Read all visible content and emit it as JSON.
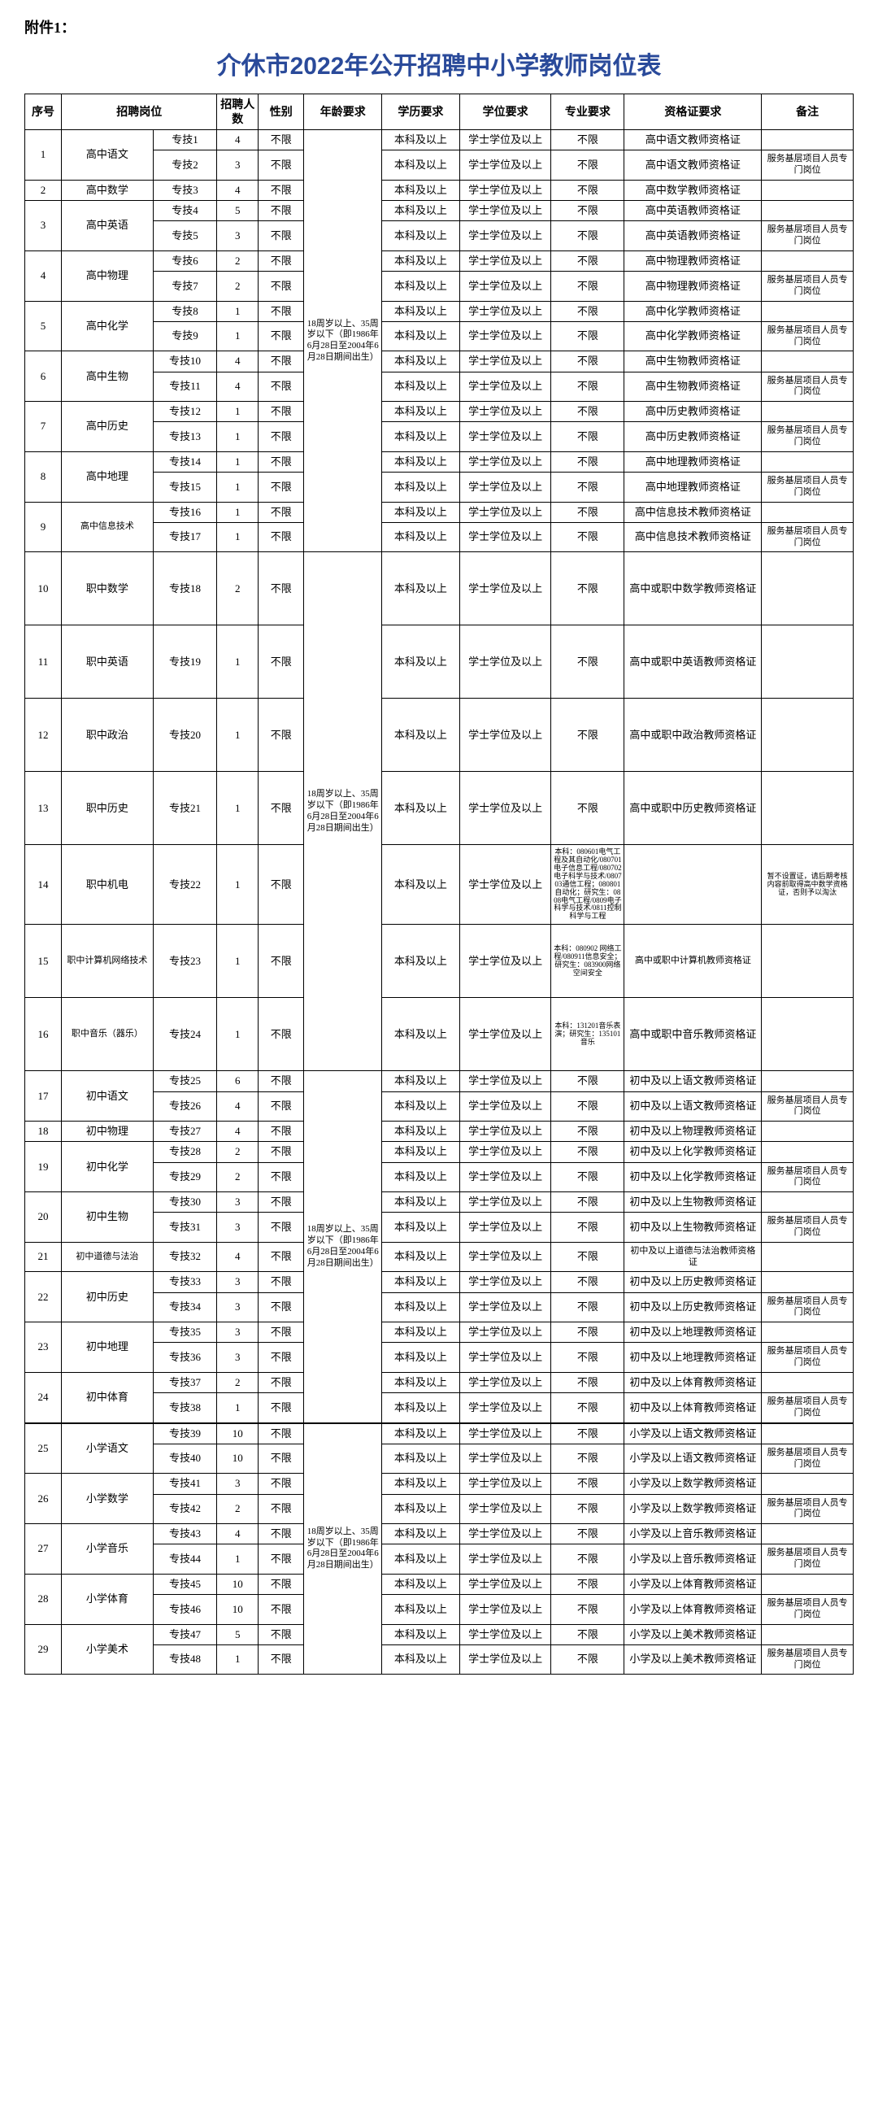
{
  "attachment": "附件1：",
  "title": "介休市2022年公开招聘中小学教师岗位表",
  "headers": {
    "seq": "序号",
    "position": "招聘岗位",
    "num": "招聘人数",
    "sex": "性别",
    "age": "年龄要求",
    "edu": "学历要求",
    "degree": "学位要求",
    "major": "专业要求",
    "cert": "资格证要求",
    "note": "备注"
  },
  "age_text_1": "18周岁以上、35周岁以下（即1986年6月28日至2004年6月28日期间出生）",
  "age_text_2": "18周岁以上、35周岁以下（即1986年6月28日至2004年6月28日期间出生）",
  "age_text_3": "18周岁以上、35周岁以下（即1986年6月28日至2004年6月28日期间出生）",
  "age_text_4": "18周岁以上、35周岁以下（即1986年6月28日至2004年6月28日期间出生）",
  "edu_std": "本科及以上",
  "deg_std": "学士学位及以上",
  "maj_none": "不限",
  "sex_none": "不限",
  "note_service": "服务基层项目人员专门岗位",
  "note_zj14": "暂不设置证，请后期考核内容前取得高中数学资格证，否则予以淘汰",
  "major_14": "本科：080601电气工程及其自动化/080701电子信息工程/080702电子科学与技术/080703通信工程；080801自动化；研究生：0808电气工程/0809电子科学与技术/0811控制科学与工程",
  "major_15": "本科：080902 网络工程/080911信息安全；研究生：083900网络空间安全",
  "major_16": "本科：131201音乐表演；研究生：135101音乐",
  "rows": [
    {
      "seq": "1",
      "pos": "高中语文",
      "span": 2,
      "code": "专技1",
      "num": "4",
      "cert": "高中语文教师资格证",
      "note": ""
    },
    {
      "code": "专技2",
      "num": "3",
      "cert": "高中语文教师资格证",
      "note": "svc"
    },
    {
      "seq": "2",
      "pos": "高中数学",
      "span": 1,
      "code": "专技3",
      "num": "4",
      "cert": "高中数学教师资格证",
      "note": ""
    },
    {
      "seq": "3",
      "pos": "高中英语",
      "span": 2,
      "code": "专技4",
      "num": "5",
      "cert": "高中英语教师资格证",
      "note": ""
    },
    {
      "code": "专技5",
      "num": "3",
      "cert": "高中英语教师资格证",
      "note": "svc"
    },
    {
      "seq": "4",
      "pos": "高中物理",
      "span": 2,
      "code": "专技6",
      "num": "2",
      "cert": "高中物理教师资格证",
      "note": ""
    },
    {
      "code": "专技7",
      "num": "2",
      "cert": "高中物理教师资格证",
      "note": "svc"
    },
    {
      "seq": "5",
      "pos": "高中化学",
      "span": 2,
      "code": "专技8",
      "num": "1",
      "cert": "高中化学教师资格证",
      "note": ""
    },
    {
      "code": "专技9",
      "num": "1",
      "cert": "高中化学教师资格证",
      "note": "svc"
    },
    {
      "seq": "6",
      "pos": "高中生物",
      "span": 2,
      "code": "专技10",
      "num": "4",
      "cert": "高中生物教师资格证",
      "note": ""
    },
    {
      "code": "专技11",
      "num": "4",
      "cert": "高中生物教师资格证",
      "note": "svc"
    },
    {
      "seq": "7",
      "pos": "高中历史",
      "span": 2,
      "code": "专技12",
      "num": "1",
      "cert": "高中历史教师资格证",
      "note": ""
    },
    {
      "code": "专技13",
      "num": "1",
      "cert": "高中历史教师资格证",
      "note": "svc"
    },
    {
      "seq": "8",
      "pos": "高中地理",
      "span": 2,
      "code": "专技14",
      "num": "1",
      "cert": "高中地理教师资格证",
      "note": ""
    },
    {
      "code": "专技15",
      "num": "1",
      "cert": "高中地理教师资格证",
      "note": "svc"
    },
    {
      "seq": "9",
      "pos": "高中信息技术",
      "span": 2,
      "code": "专技16",
      "num": "1",
      "cert": "高中信息技术教师资格证",
      "note": ""
    },
    {
      "code": "专技17",
      "num": "1",
      "cert": "高中信息技术教师资格证",
      "note": "svc"
    },
    {
      "seq": "10",
      "pos": "职中数学",
      "span": 1,
      "code": "专技18",
      "num": "2",
      "cert": "高中或职中数学教师资格证",
      "note": "",
      "tall": true,
      "ageStart": "2"
    },
    {
      "seq": "11",
      "pos": "职中英语",
      "span": 1,
      "code": "专技19",
      "num": "1",
      "cert": "高中或职中英语教师资格证",
      "note": "",
      "tall": true
    },
    {
      "seq": "12",
      "pos": "职中政治",
      "span": 1,
      "code": "专技20",
      "num": "1",
      "cert": "高中或职中政治教师资格证",
      "note": "",
      "tall": true
    },
    {
      "seq": "13",
      "pos": "职中历史",
      "span": 1,
      "code": "专技21",
      "num": "1",
      "cert": "高中或职中历史教师资格证",
      "note": "",
      "tall": true
    },
    {
      "seq": "14",
      "pos": "职中机电",
      "span": 1,
      "code": "专技22",
      "num": "1",
      "cert": "",
      "note": "special14",
      "tall": true,
      "major": "14"
    },
    {
      "seq": "15",
      "pos": "职中计算机网络技术",
      "span": 1,
      "code": "专技23",
      "num": "1",
      "cert": "高中或职中计算机教师资格证",
      "note": "",
      "tall": true,
      "major": "15"
    },
    {
      "seq": "16",
      "pos": "职中音乐（器乐）",
      "span": 1,
      "code": "专技24",
      "num": "1",
      "cert": "高中或职中音乐教师资格证",
      "note": "",
      "tall": true,
      "major": "16"
    },
    {
      "seq": "17",
      "pos": "初中语文",
      "span": 2,
      "code": "专技25",
      "num": "6",
      "cert": "初中及以上语文教师资格证",
      "note": "",
      "ageStart": "3"
    },
    {
      "code": "专技26",
      "num": "4",
      "cert": "初中及以上语文教师资格证",
      "note": "svc"
    },
    {
      "seq": "18",
      "pos": "初中物理",
      "span": 1,
      "code": "专技27",
      "num": "4",
      "cert": "初中及以上物理教师资格证",
      "note": ""
    },
    {
      "seq": "19",
      "pos": "初中化学",
      "span": 2,
      "code": "专技28",
      "num": "2",
      "cert": "初中及以上化学教师资格证",
      "note": ""
    },
    {
      "code": "专技29",
      "num": "2",
      "cert": "初中及以上化学教师资格证",
      "note": "svc"
    },
    {
      "seq": "20",
      "pos": "初中生物",
      "span": 2,
      "code": "专技30",
      "num": "3",
      "cert": "初中及以上生物教师资格证",
      "note": ""
    },
    {
      "code": "专技31",
      "num": "3",
      "cert": "初中及以上生物教师资格证",
      "note": "svc"
    },
    {
      "seq": "21",
      "pos": "初中道德与法治",
      "span": 1,
      "code": "专技32",
      "num": "4",
      "cert": "初中及以上道德与法治教师资格证",
      "note": ""
    },
    {
      "seq": "22",
      "pos": "初中历史",
      "span": 2,
      "code": "专技33",
      "num": "3",
      "cert": "初中及以上历史教师资格证",
      "note": ""
    },
    {
      "code": "专技34",
      "num": "3",
      "cert": "初中及以上历史教师资格证",
      "note": "svc"
    },
    {
      "seq": "23",
      "pos": "初中地理",
      "span": 2,
      "code": "专技35",
      "num": "3",
      "cert": "初中及以上地理教师资格证",
      "note": ""
    },
    {
      "code": "专技36",
      "num": "3",
      "cert": "初中及以上地理教师资格证",
      "note": "svc"
    },
    {
      "seq": "24",
      "pos": "初中体育",
      "span": 2,
      "code": "专技37",
      "num": "2",
      "cert": "初中及以上体育教师资格证",
      "note": ""
    },
    {
      "code": "专技38",
      "num": "1",
      "cert": "初中及以上体育教师资格证",
      "note": "svc"
    },
    {
      "seq": "25",
      "pos": "小学语文",
      "span": 2,
      "code": "专技39",
      "num": "10",
      "cert": "小学及以上语文教师资格证",
      "note": "",
      "thick": true,
      "ageStart": "4"
    },
    {
      "code": "专技40",
      "num": "10",
      "cert": "小学及以上语文教师资格证",
      "note": "svc"
    },
    {
      "seq": "26",
      "pos": "小学数学",
      "span": 2,
      "code": "专技41",
      "num": "3",
      "cert": "小学及以上数学教师资格证",
      "note": ""
    },
    {
      "code": "专技42",
      "num": "2",
      "cert": "小学及以上数学教师资格证",
      "note": "svc"
    },
    {
      "seq": "27",
      "pos": "小学音乐",
      "span": 2,
      "code": "专技43",
      "num": "4",
      "cert": "小学及以上音乐教师资格证",
      "note": ""
    },
    {
      "code": "专技44",
      "num": "1",
      "cert": "小学及以上音乐教师资格证",
      "note": "svc"
    },
    {
      "seq": "28",
      "pos": "小学体育",
      "span": 2,
      "code": "专技45",
      "num": "10",
      "cert": "小学及以上体育教师资格证",
      "note": ""
    },
    {
      "code": "专技46",
      "num": "10",
      "cert": "小学及以上体育教师资格证",
      "note": "svc"
    },
    {
      "seq": "29",
      "pos": "小学美术",
      "span": 2,
      "code": "专技47",
      "num": "5",
      "cert": "小学及以上美术教师资格证",
      "note": ""
    },
    {
      "code": "专技48",
      "num": "1",
      "cert": "小学及以上美术教师资格证",
      "note": "svc"
    }
  ],
  "ageSpans": {
    "1": 17,
    "2": 7,
    "3": 14,
    "4": 10
  }
}
